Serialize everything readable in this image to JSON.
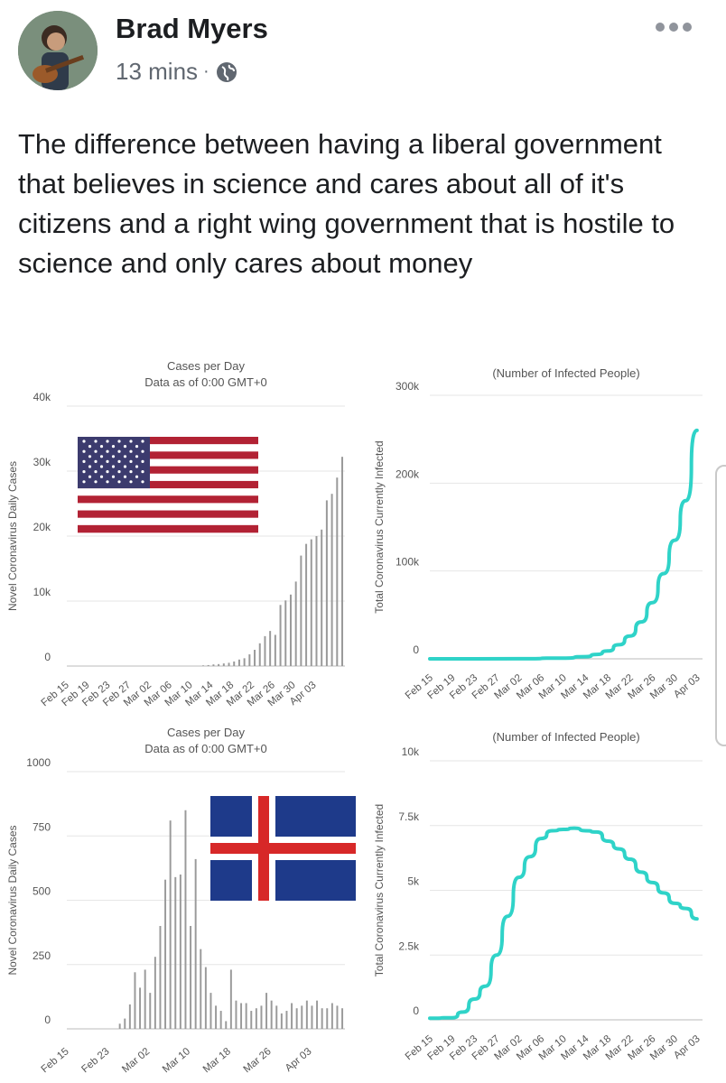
{
  "post": {
    "author": "Brad Myers",
    "time": "13 mins",
    "separator": "·",
    "privacy_icon": "globe-icon",
    "more_icon": "more-horizontal-icon",
    "text": "The difference between having a liberal government that believes in science and cares about all of it's citizens and a right wing government that is hostile to science and only cares about money"
  },
  "chart_data": [
    {
      "type": "bar",
      "title": "Cases per Day",
      "subtitle": "Data as of 0:00 GMT+0",
      "ylabel": "Novel Coronavirus Daily Cases",
      "ylim": [
        0,
        40000
      ],
      "yticks": [
        "0",
        "10k",
        "20k",
        "30k",
        "40k"
      ],
      "xticks": [
        "Feb 15",
        "Feb 19",
        "Feb 23",
        "Feb 27",
        "Mar 02",
        "Mar 06",
        "Mar 10",
        "Mar 14",
        "Mar 18",
        "Mar 22",
        "Mar 26",
        "Mar 30",
        "Apr 03"
      ],
      "start_date": "Feb 15",
      "values": [
        0,
        0,
        0,
        0,
        0,
        0,
        0,
        0,
        0,
        0,
        0,
        0,
        0,
        0,
        0,
        0,
        0,
        0,
        0,
        0,
        0,
        0,
        0,
        0,
        0,
        0,
        100,
        150,
        250,
        300,
        400,
        500,
        700,
        1000,
        1200,
        1800,
        2500,
        3500,
        4600,
        5400,
        4800,
        9400,
        10100,
        11000,
        13000,
        17000,
        18800,
        19500,
        20000,
        21000,
        25500,
        26500,
        29000,
        32200
      ],
      "flag": "usa-flag"
    },
    {
      "type": "line",
      "title": "(Number of Infected People)",
      "ylabel": "Total Coronavirus Currently Infected",
      "ylim": [
        0,
        300000
      ],
      "yticks": [
        "0",
        "100k",
        "200k",
        "300k"
      ],
      "xticks": [
        "Feb 15",
        "Feb 19",
        "Feb 23",
        "Feb 27",
        "Mar 02",
        "Mar 06",
        "Mar 10",
        "Mar 14",
        "Mar 18",
        "Mar 22",
        "Mar 26",
        "Mar 30",
        "Apr 03"
      ],
      "x": [
        "Feb 15",
        "Mar 02",
        "Mar 10",
        "Mar 14",
        "Mar 16",
        "Mar 18",
        "Mar 20",
        "Mar 22",
        "Mar 24",
        "Mar 26",
        "Mar 28",
        "Mar 30",
        "Apr 01",
        "Apr 03"
      ],
      "values": [
        0,
        100,
        800,
        2500,
        5000,
        9000,
        16000,
        26000,
        42000,
        64000,
        97000,
        135000,
        180000,
        260000
      ],
      "color": "#2fd3c8"
    },
    {
      "type": "bar",
      "title": "Cases per Day",
      "subtitle": "Data as of 0:00 GMT+0",
      "ylabel": "Novel Coronavirus Daily Cases",
      "ylim": [
        0,
        1000
      ],
      "yticks": [
        "0",
        "250",
        "500",
        "750",
        "1000"
      ],
      "xticks": [
        "Feb 15",
        "Feb 23",
        "Mar 02",
        "Mar 10",
        "Mar 18",
        "Mar 26",
        "Apr 03"
      ],
      "start_date": "Feb 15",
      "values": [
        0,
        0,
        0,
        0,
        0,
        0,
        0,
        0,
        0,
        0,
        20,
        40,
        95,
        220,
        160,
        230,
        140,
        280,
        400,
        580,
        810,
        590,
        600,
        850,
        400,
        660,
        310,
        240,
        140,
        90,
        70,
        30,
        230,
        110,
        100,
        100,
        70,
        80,
        90,
        140,
        110,
        90,
        60,
        70,
        100,
        80,
        90,
        110,
        90,
        110,
        80,
        80,
        100,
        90,
        80
      ],
      "flag": "iceland-flag"
    },
    {
      "type": "line",
      "title": "(Number of Infected People)",
      "ylabel": "Total Coronavirus Currently Infected",
      "ylim": [
        0,
        10000
      ],
      "yticks": [
        "0",
        "2.5k",
        "5k",
        "7.5k",
        "10k"
      ],
      "xticks": [
        "Feb 15",
        "Feb 19",
        "Feb 23",
        "Feb 27",
        "Mar 02",
        "Mar 06",
        "Mar 10",
        "Mar 14",
        "Mar 18",
        "Mar 22",
        "Mar 26",
        "Mar 30",
        "Apr 03"
      ],
      "x": [
        "Feb 15",
        "Feb 19",
        "Feb 21",
        "Feb 23",
        "Feb 25",
        "Feb 27",
        "Feb 29",
        "Mar 02",
        "Mar 04",
        "Mar 06",
        "Mar 08",
        "Mar 10",
        "Mar 12",
        "Mar 14",
        "Mar 16",
        "Mar 18",
        "Mar 20",
        "Mar 22",
        "Mar 24",
        "Mar 26",
        "Mar 28",
        "Mar 30",
        "Apr 01",
        "Apr 03"
      ],
      "values": [
        60,
        80,
        300,
        800,
        1300,
        2500,
        4000,
        5500,
        6300,
        7000,
        7300,
        7350,
        7400,
        7300,
        7250,
        6900,
        6600,
        6200,
        5700,
        5300,
        4900,
        4500,
        4300,
        3900
      ],
      "color": "#2fd3c8"
    }
  ]
}
